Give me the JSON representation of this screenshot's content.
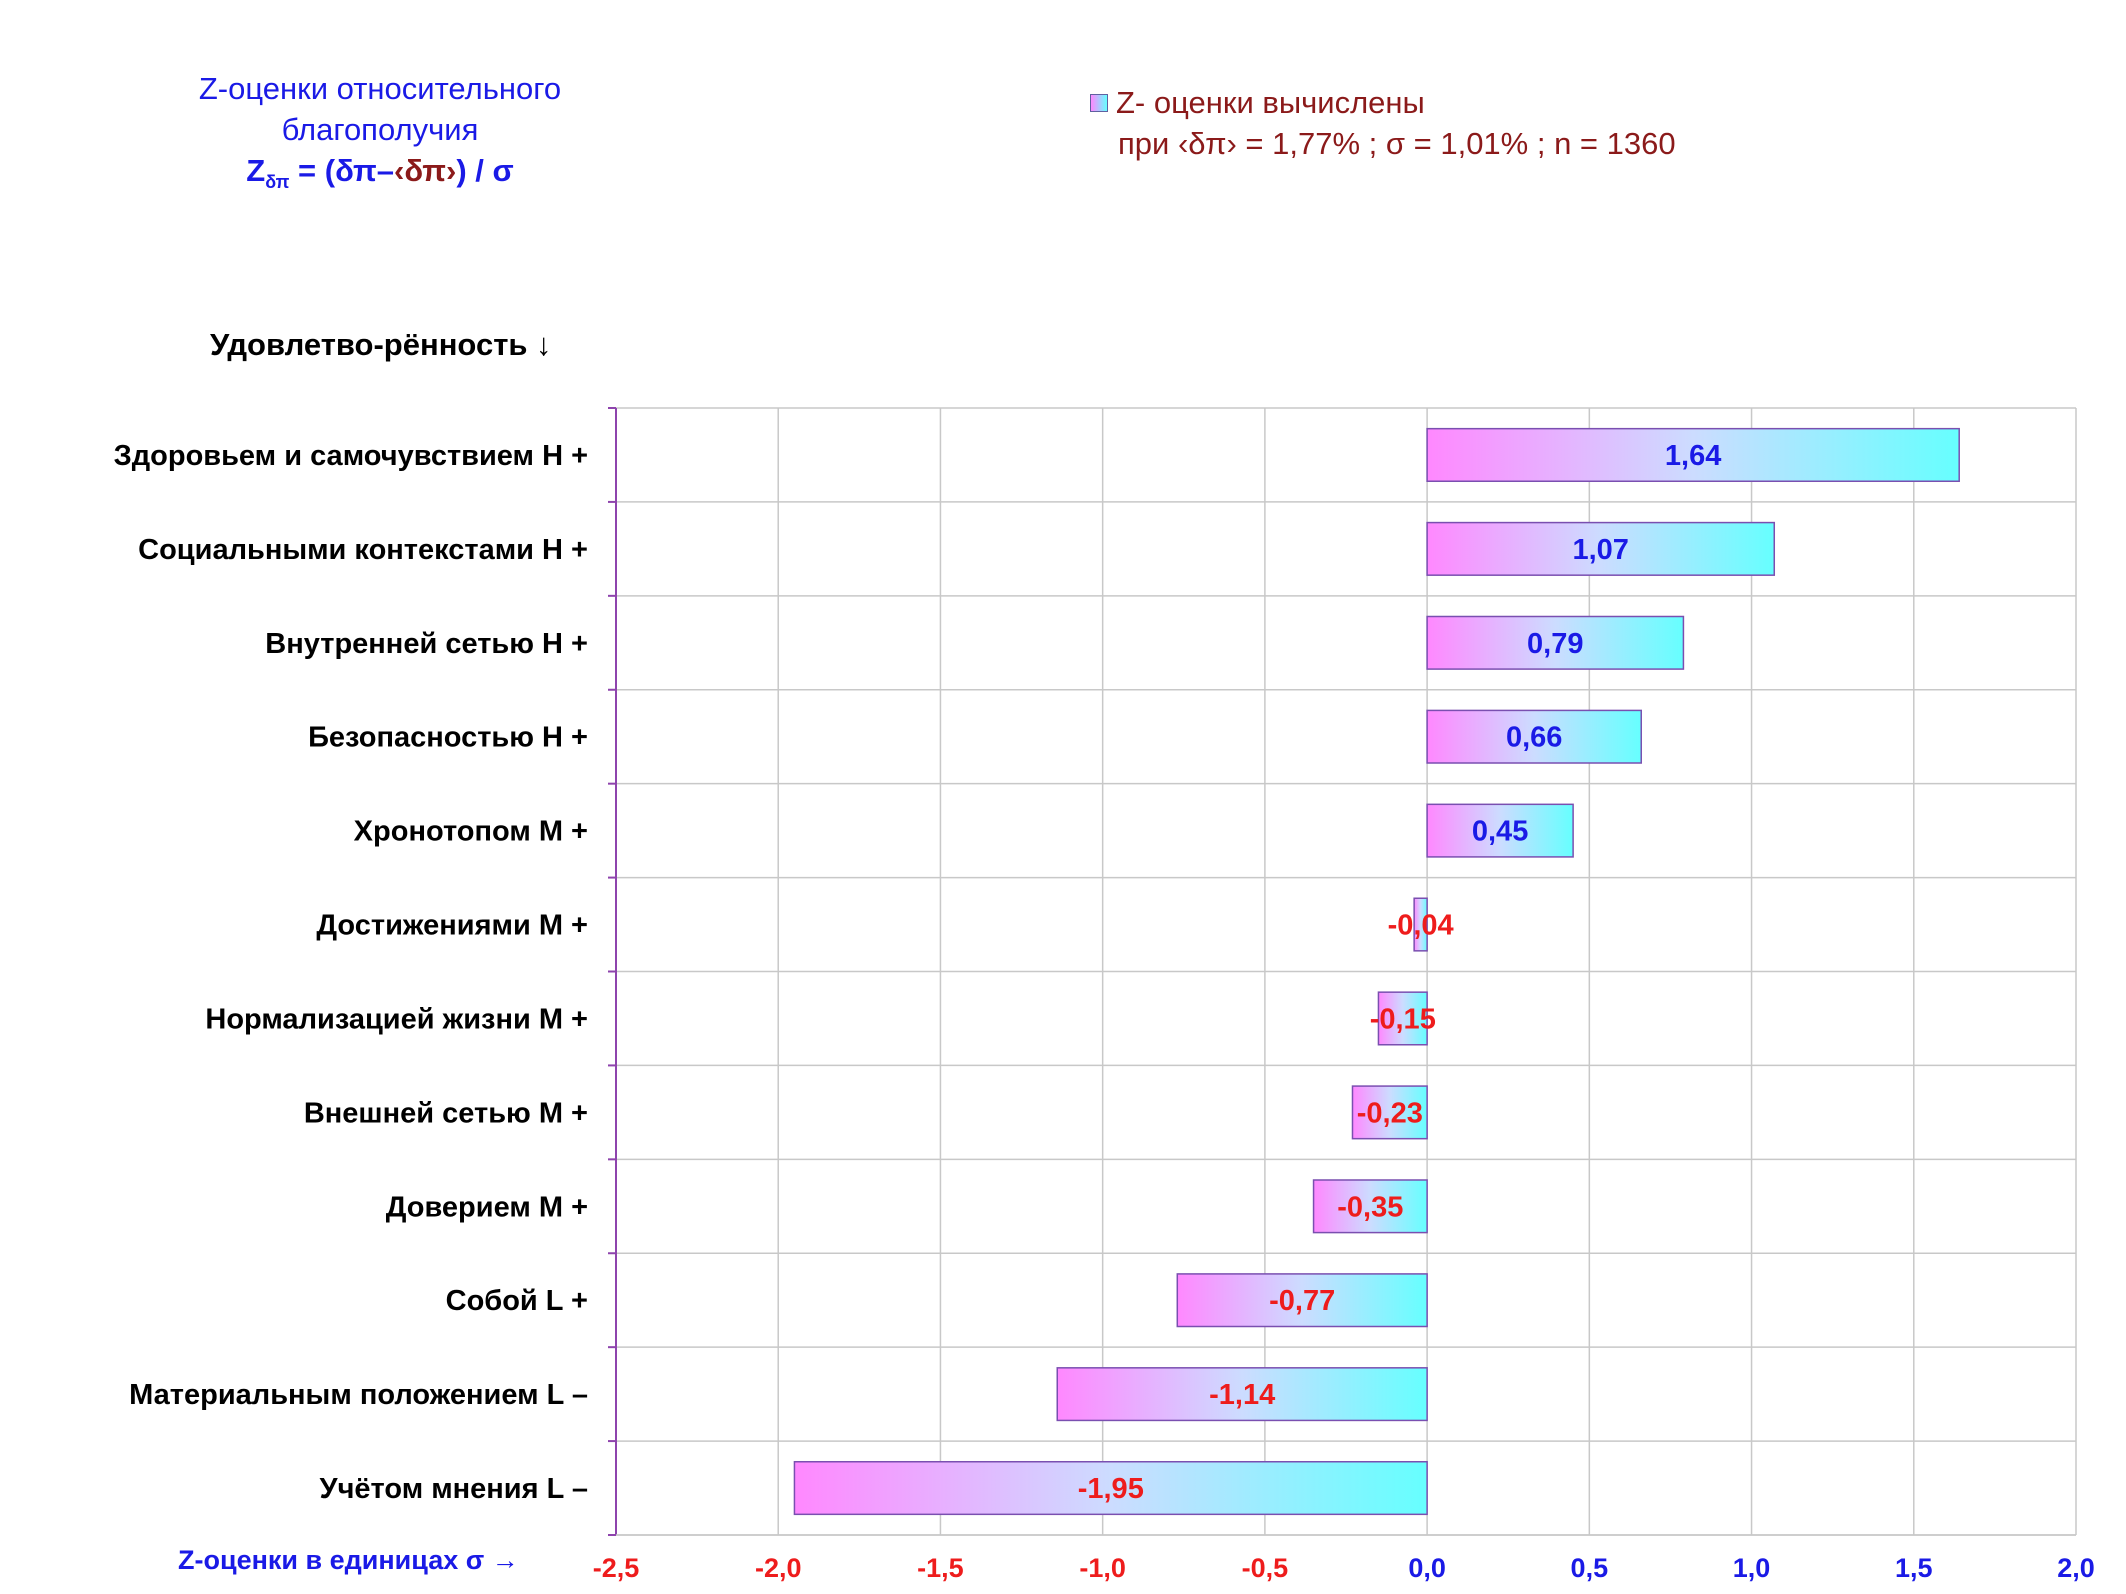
{
  "header": {
    "title_line1": "Z-оценки  относительного",
    "title_line2": "благополучия",
    "formula_z": "Z",
    "formula_sub": "δπ",
    "formula_expr_a": "= (δπ–",
    "formula_expr_b": "‹δπ›",
    "formula_expr_c": ") / σ"
  },
  "legend": {
    "line1": "Z- оценки вычислены",
    "line2": "при ‹δπ› = 1,77% ; σ = 1,01% ; n = 1360"
  },
  "axis_titles": {
    "y": "Удовлетво-рённость ↓",
    "x": "Z-оценки в единицах σ →"
  },
  "colors": {
    "positive_label": "#1a1ae6",
    "negative_label": "#ee1c1c",
    "bar_left": "#ff88ff",
    "bar_mid": "#ccdcff",
    "bar_right": "#66ffff",
    "bar_border": "#7a4fb0",
    "grid": "#c8c8c8",
    "axis": "#8e44ad"
  },
  "chart_data": {
    "type": "bar",
    "orientation": "horizontal",
    "categories": [
      "Здоровьем и самочувствием  Н +",
      "Социальными контекстами  Н +",
      "Внутренней сетью  Н +",
      "Безопасностью  Н +",
      "Хронотопом  М +",
      "Достижениями  М +",
      "Нормализацией жизни  М +",
      "Внешней сетью  М +",
      "Доверием  М +",
      "Собой  L +",
      "Материальным положением  L –",
      "Учётом мнения  L –"
    ],
    "values": [
      1.64,
      1.07,
      0.79,
      0.66,
      0.45,
      -0.04,
      -0.15,
      -0.23,
      -0.35,
      -0.77,
      -1.14,
      -1.95
    ],
    "value_labels": [
      "1,64",
      "1,07",
      "0,79",
      "0,66",
      "0,45",
      "-0,04",
      "-0,15",
      "-0,23",
      "-0,35",
      "-0,77",
      "-1,14",
      "-1,95"
    ],
    "xlim": [
      -2.5,
      2.0
    ],
    "xticks": [
      -2.5,
      -2.0,
      -1.5,
      -1.0,
      -0.5,
      0.0,
      0.5,
      1.0,
      1.5,
      2.0
    ],
    "xtick_labels": [
      "-2,5",
      "-2,0",
      "-1,5",
      "-1,0",
      "-0,5",
      "0,0",
      "0,5",
      "1,0",
      "1,5",
      "2,0"
    ],
    "grid": true
  }
}
